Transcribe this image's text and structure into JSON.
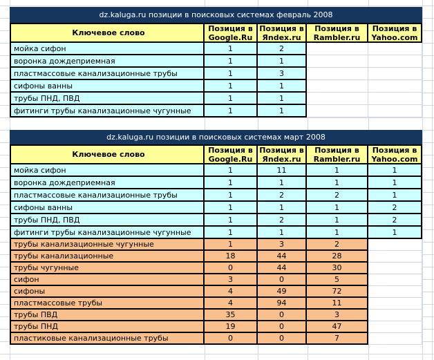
{
  "colors": {
    "canvas": "#ffffff",
    "gridline": "#d0d7e5",
    "border": "#000000",
    "title_bg": "#17365d",
    "title_text": "#ffffff",
    "header_bg": "#ffff99",
    "row_cyan": "#ccffff",
    "row_orange": "#f9c08e",
    "cell_text": "#000000"
  },
  "tables": [
    {
      "title": "dz.kaluga.ru позиции в поисковых системах февраль 2008",
      "header": {
        "keyword": "Ключевое слово",
        "engines": [
          "Позиция в\nGoogle.Ru",
          "Позиция в\nЯndex.ru",
          "Позиция в\nRambler.ru",
          "Позиция в\nYahoo.com"
        ]
      },
      "rows": [
        {
          "keyword": "мойка сифон",
          "fill": "cyan",
          "values": [
            "1",
            "2",
            null,
            null
          ]
        },
        {
          "keyword": "воронка дождеприемная",
          "fill": "cyan",
          "values": [
            "1",
            "1",
            null,
            null
          ]
        },
        {
          "keyword": "пластмассовые канализационные трубы",
          "fill": "cyan",
          "values": [
            "1",
            "3",
            null,
            null
          ]
        },
        {
          "keyword": "сифоны ванны",
          "fill": "cyan",
          "values": [
            "1",
            "1",
            null,
            null
          ]
        },
        {
          "keyword": "трубы ПНД, ПВД",
          "fill": "cyan",
          "values": [
            "1",
            "1",
            null,
            null
          ]
        },
        {
          "keyword": "фитинги трубы канализационные чугунные",
          "fill": "cyan",
          "values": [
            "1",
            "1",
            null,
            null
          ]
        }
      ]
    },
    {
      "title": "dz.kaluga.ru позиции в поисковых системах март 2008",
      "header": {
        "keyword": "Ключевое слово",
        "engines": [
          "Позиция в\nGoogle.Ru",
          "Позиция в\nЯndex.ru",
          "Позиция в\nRambler.ru",
          "Позиция в\nYahoo.com"
        ]
      },
      "rows": [
        {
          "keyword": "мойка сифон",
          "fill": "cyan",
          "values": [
            "1",
            "11",
            "1",
            "1"
          ]
        },
        {
          "keyword": "воронка дождеприемная",
          "fill": "cyan",
          "values": [
            "1",
            "1",
            "1",
            "1"
          ]
        },
        {
          "keyword": "пластмассовые канализационные трубы",
          "fill": "cyan",
          "values": [
            "1",
            "2",
            "2",
            "1"
          ]
        },
        {
          "keyword": "сифоны ванны",
          "fill": "cyan",
          "values": [
            "1",
            "1",
            "1",
            "2"
          ]
        },
        {
          "keyword": "трубы ПНД, ПВД",
          "fill": "cyan",
          "values": [
            "1",
            "2",
            "1",
            "2"
          ]
        },
        {
          "keyword": "фитинги трубы канализационные чугунные",
          "fill": "cyan",
          "values": [
            "1",
            "1",
            "1",
            "1"
          ]
        },
        {
          "keyword": "трубы канализационные чугунные",
          "fill": "orange",
          "values": [
            "1",
            "3",
            "2",
            null
          ]
        },
        {
          "keyword": "трубы канализационные",
          "fill": "orange",
          "values": [
            "18",
            "44",
            "28",
            null
          ]
        },
        {
          "keyword": "трубы чугунные",
          "fill": "orange",
          "values": [
            "0",
            "44",
            "30",
            null
          ]
        },
        {
          "keyword": "сифон",
          "fill": "orange",
          "values": [
            "3",
            "0",
            "5",
            null
          ]
        },
        {
          "keyword": "сифоны",
          "fill": "orange",
          "values": [
            "4",
            "49",
            "72",
            null
          ]
        },
        {
          "keyword": "пластмассовые трубы",
          "fill": "orange",
          "values": [
            "4",
            "94",
            "11",
            null
          ]
        },
        {
          "keyword": "трубы ПВД",
          "fill": "orange",
          "values": [
            "35",
            "0",
            "3",
            null
          ]
        },
        {
          "keyword": "трубы ПНД",
          "fill": "orange",
          "values": [
            "19",
            "0",
            "47",
            null
          ]
        },
        {
          "keyword": "пластиковые канализационные трубы",
          "fill": "orange",
          "values": [
            "0",
            "0",
            "7",
            null
          ]
        }
      ]
    }
  ]
}
